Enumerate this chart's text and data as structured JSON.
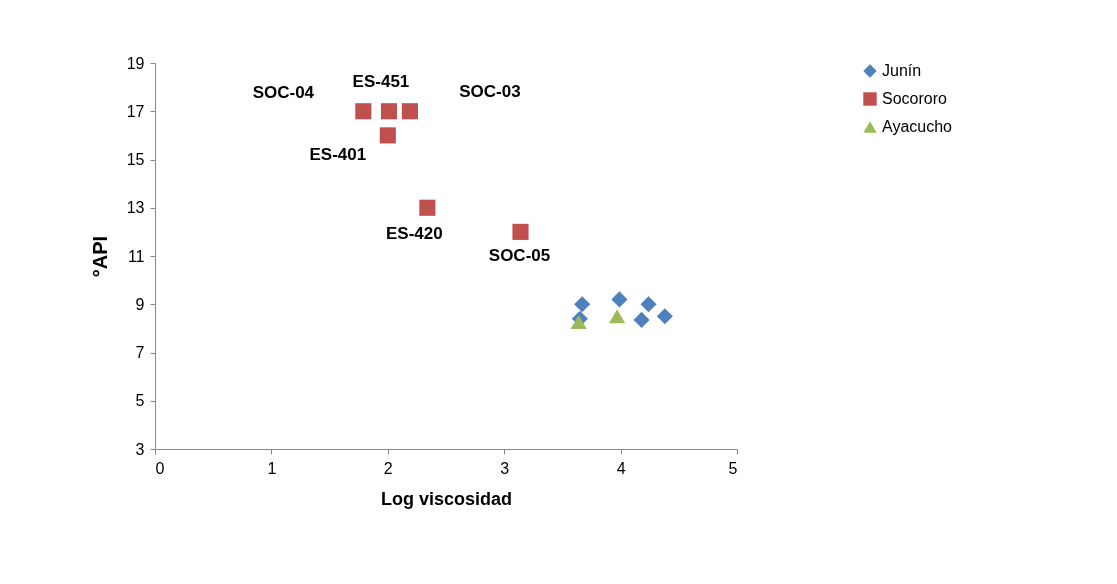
{
  "chart_data": {
    "type": "scatter",
    "xlabel": "Log viscosidad",
    "ylabel": "°API",
    "xlim": [
      0,
      5
    ],
    "xticks": [
      0,
      1,
      2,
      3,
      4,
      5
    ],
    "ylim": [
      3,
      19
    ],
    "yticks": [
      3,
      5,
      7,
      9,
      11,
      13,
      15,
      17,
      19
    ],
    "grid": false,
    "legend": "right",
    "series": [
      {
        "name": "Junín",
        "color": "#4f81bd",
        "marker": "diamond",
        "x": [
          3.65,
          3.67,
          3.99,
          4.18,
          4.24,
          4.38
        ],
        "values": [
          8.4,
          9.0,
          9.2,
          8.35,
          9.0,
          8.5
        ]
      },
      {
        "name": "Socororo",
        "color": "#c0504d",
        "marker": "square",
        "x": [
          1.79,
          2.01,
          2.19,
          2.0,
          2.34,
          3.14
        ],
        "values": [
          17.0,
          17.0,
          17.0,
          16.0,
          13.0,
          12.0
        ]
      },
      {
        "name": "Ayacucho",
        "color": "#9bbb59",
        "marker": "triangle",
        "x": [
          3.64,
          3.97
        ],
        "values": [
          8.26,
          8.5
        ]
      }
    ],
    "annotations": [
      {
        "text": "SOC-04",
        "x": 1.79,
        "y": 17.0
      },
      {
        "text": "ES-451",
        "x": 2.01,
        "y": 17.0
      },
      {
        "text": "SOC-03",
        "x": 2.19,
        "y": 17.0
      },
      {
        "text": "ES-401",
        "x": 2.0,
        "y": 16.0
      },
      {
        "text": "ES-420",
        "x": 2.34,
        "y": 13.0
      },
      {
        "text": "SOC-05",
        "x": 3.14,
        "y": 12.0
      }
    ]
  }
}
